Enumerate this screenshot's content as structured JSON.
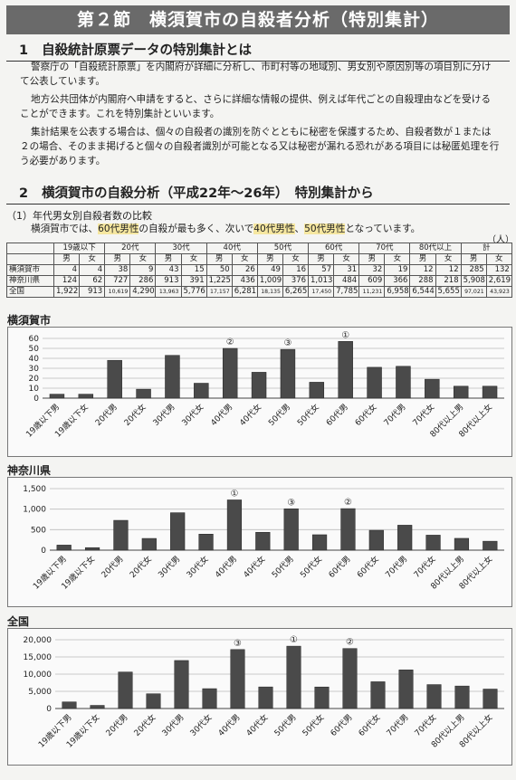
{
  "title": "第２節　横須賀市の自殺者分析（特別集計）",
  "section1": {
    "number": "1",
    "title": "自殺統計原票データの特別集計とは",
    "paragraphs": [
      "警察庁の「自殺統計原票」を内閣府が詳細に分析し、市町村等の地域別、男女別や原因別等の項目別に分けて公表しています。",
      "地方公共団体が内閣府へ申請をすると、さらに詳細な情報の提供、例えば年代ごとの自殺理由などを受けることができます。これを特別集計といいます。",
      "集計結果を公表する場合は、個々の自殺者の識別を防ぐとともに秘密を保護するため、自殺者数が１または２の場合、そのまま掲げると個々の自殺者識別が可能となる又は秘密が漏れる恐れがある項目には秘匿処理を行う必要があります。"
    ]
  },
  "section2": {
    "number": "2",
    "title_a": "横須賀市の自殺分析",
    "title_b": "（平成22年〜26年）",
    "title_c": "特別集計から"
  },
  "subsection": {
    "title": "（1）年代男女別自殺者数の比較",
    "text_1": "横須賀市では、",
    "hl_1": "60代男性",
    "text_2": "の自殺が最も多く、次いで",
    "hl_2": "40代男性",
    "text_3": "、",
    "hl_3": "50代男性",
    "text_4": "となっています。",
    "unit": "（人）"
  },
  "table": {
    "age_headers": [
      "19歳以下",
      "20代",
      "30代",
      "40代",
      "50代",
      "60代",
      "70代",
      "80代以上",
      "計"
    ],
    "male": "男",
    "female": "女",
    "rows": [
      {
        "label": "横須賀市",
        "values": [
          "4",
          "4",
          "38",
          "9",
          "43",
          "15",
          "50",
          "26",
          "49",
          "16",
          "57",
          "31",
          "32",
          "19",
          "12",
          "12",
          "285",
          "132"
        ]
      },
      {
        "label": "神奈川県",
        "values": [
          "124",
          "62",
          "727",
          "286",
          "913",
          "391",
          "1,225",
          "436",
          "1,009",
          "376",
          "1,013",
          "484",
          "609",
          "366",
          "288",
          "218",
          "5,908",
          "2,619"
        ]
      },
      {
        "label": "全国",
        "values": [
          "1,922",
          "913",
          "10,619",
          "4,290",
          "13,963",
          "5,776",
          "17,157",
          "6,281",
          "18,135",
          "6,265",
          "17,450",
          "7,785",
          "11,231",
          "6,958",
          "6,544",
          "5,655",
          "97,021",
          "43,923"
        ]
      }
    ]
  },
  "charts": [
    {
      "title": "横須賀市",
      "chart_data": {
        "type": "bar",
        "categories": [
          "19歳以下男",
          "19歳以下女",
          "20代男",
          "20代女",
          "30代男",
          "30代女",
          "40代男",
          "40代女",
          "50代男",
          "50代女",
          "60代男",
          "60代女",
          "70代男",
          "70代女",
          "80代以上男",
          "80代以上女"
        ],
        "values": [
          4,
          4,
          38,
          9,
          43,
          15,
          50,
          26,
          49,
          16,
          57,
          31,
          32,
          19,
          12,
          12
        ],
        "ylim": [
          0,
          60
        ],
        "yticks": [
          0,
          10,
          20,
          30,
          40,
          50,
          60
        ],
        "ytick_labels": [
          "0",
          "10",
          "20",
          "30",
          "40",
          "50",
          "60"
        ],
        "ranks": [
          {
            "index": 10,
            "label": "①"
          },
          {
            "index": 6,
            "label": "②"
          },
          {
            "index": 8,
            "label": "③"
          }
        ]
      }
    },
    {
      "title": "神奈川県",
      "chart_data": {
        "type": "bar",
        "categories": [
          "19歳以下男",
          "19歳以下女",
          "20代男",
          "20代女",
          "30代男",
          "30代女",
          "40代男",
          "40代女",
          "50代男",
          "50代女",
          "60代男",
          "60代女",
          "70代男",
          "70代女",
          "80代以上男",
          "80代以上女"
        ],
        "values": [
          124,
          62,
          727,
          286,
          913,
          391,
          1225,
          436,
          1009,
          376,
          1013,
          484,
          609,
          366,
          288,
          218
        ],
        "ylim": [
          0,
          1500
        ],
        "yticks": [
          0,
          500,
          1000,
          1500
        ],
        "ytick_labels": [
          "0",
          "500",
          "1,000",
          "1,500"
        ],
        "ranks": [
          {
            "index": 6,
            "label": "①"
          },
          {
            "index": 10,
            "label": "②"
          },
          {
            "index": 8,
            "label": "③"
          }
        ]
      }
    },
    {
      "title": "全国",
      "chart_data": {
        "type": "bar",
        "categories": [
          "19歳以下男",
          "19歳以下女",
          "20代男",
          "20代女",
          "30代男",
          "30代女",
          "40代男",
          "40代女",
          "50代男",
          "50代女",
          "60代男",
          "60代女",
          "70代男",
          "70代女",
          "80代以上男",
          "80代以上女"
        ],
        "values": [
          1922,
          913,
          10619,
          4290,
          13963,
          5776,
          17157,
          6281,
          18135,
          6265,
          17450,
          7785,
          11231,
          6958,
          6544,
          5655
        ],
        "ylim": [
          0,
          20000
        ],
        "yticks": [
          0,
          5000,
          10000,
          15000,
          20000
        ],
        "ytick_labels": [
          "0",
          "5,000",
          "10,000",
          "15,000",
          "20,000"
        ],
        "ranks": [
          {
            "index": 8,
            "label": "①"
          },
          {
            "index": 10,
            "label": "②"
          },
          {
            "index": 6,
            "label": "③"
          }
        ]
      }
    }
  ]
}
